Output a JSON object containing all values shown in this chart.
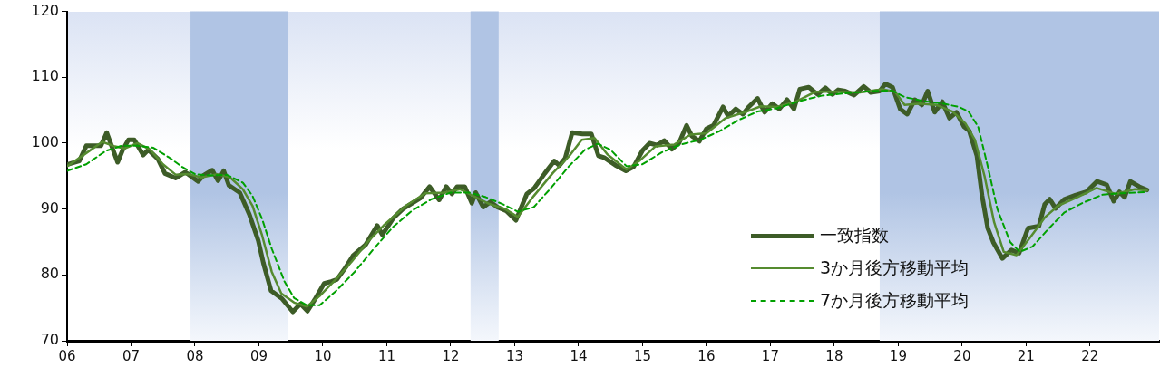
{
  "chart_data": {
    "type": "line",
    "xlim": [
      2006,
      2023.08
    ],
    "xticks": [
      {
        "value": 2006,
        "label": "06"
      },
      {
        "value": 2007,
        "label": "07"
      },
      {
        "value": 2008,
        "label": "08"
      },
      {
        "value": 2009,
        "label": "09"
      },
      {
        "value": 2010,
        "label": "10"
      },
      {
        "value": 2011,
        "label": "11"
      },
      {
        "value": 2012,
        "label": "12"
      },
      {
        "value": 2013,
        "label": "13"
      },
      {
        "value": 2014,
        "label": "14"
      },
      {
        "value": 2015,
        "label": "15"
      },
      {
        "value": 2016,
        "label": "16"
      },
      {
        "value": 2017,
        "label": "17"
      },
      {
        "value": 2018,
        "label": "18"
      },
      {
        "value": 2019,
        "label": "19"
      },
      {
        "value": 2020,
        "label": "20"
      },
      {
        "value": 2021,
        "label": "21"
      },
      {
        "value": 2022,
        "label": "22"
      }
    ],
    "ylim": [
      70,
      120
    ],
    "yticks": [
      70,
      80,
      90,
      100,
      110,
      120
    ],
    "grid": false,
    "legend": "bottom right",
    "marker": "none",
    "bands": [
      {
        "axis": "x",
        "from": 2007.93,
        "to": 2009.46,
        "color": "#b0c4e4"
      },
      {
        "axis": "x",
        "from": 2012.31,
        "to": 2012.75,
        "color": "#b0c4e4"
      },
      {
        "axis": "x",
        "from": 2018.71,
        "to": 2023.08,
        "color": "#b0c4e4"
      }
    ],
    "series": [
      {
        "name": "一致指数",
        "color": "#3d5c27",
        "line_style": "solid",
        "x": [
          2006.02,
          2006.19,
          2006.3,
          2006.39,
          2006.53,
          2006.62,
          2006.79,
          2006.87,
          2006.96,
          2007.05,
          2007.19,
          2007.27,
          2007.42,
          2007.53,
          2007.7,
          2007.85,
          2008.05,
          2008.13,
          2008.27,
          2008.36,
          2008.45,
          2008.53,
          2008.7,
          2008.85,
          2008.99,
          2009.07,
          2009.19,
          2009.36,
          2009.53,
          2009.65,
          2009.76,
          2009.87,
          2010.02,
          2010.13,
          2010.22,
          2010.36,
          2010.47,
          2010.67,
          2010.85,
          2010.93,
          2011.1,
          2011.25,
          2011.53,
          2011.67,
          2011.82,
          2011.93,
          2012.02,
          2012.1,
          2012.22,
          2012.33,
          2012.39,
          2012.51,
          2012.62,
          2012.73,
          2012.87,
          2013.02,
          2013.19,
          2013.3,
          2013.47,
          2013.62,
          2013.7,
          2013.79,
          2013.9,
          2014.06,
          2014.2,
          2014.31,
          2014.4,
          2014.57,
          2014.74,
          2014.86,
          2015.0,
          2015.11,
          2015.23,
          2015.34,
          2015.46,
          2015.57,
          2015.69,
          2015.77,
          2015.89,
          2016.0,
          2016.11,
          2016.26,
          2016.34,
          2016.46,
          2016.57,
          2016.66,
          2016.8,
          2016.91,
          2017.03,
          2017.14,
          2017.26,
          2017.37,
          2017.46,
          2017.6,
          2017.74,
          2017.86,
          2017.97,
          2018.06,
          2018.17,
          2018.31,
          2018.46,
          2018.57,
          2018.71,
          2018.8,
          2018.91,
          2019.03,
          2019.14,
          2019.26,
          2019.37,
          2019.46,
          2019.57,
          2019.69,
          2019.8,
          2019.91,
          2020.03,
          2020.11,
          2020.23,
          2020.31,
          2020.4,
          2020.49,
          2020.63,
          2020.77,
          2020.89,
          2021.03,
          2021.2,
          2021.29,
          2021.37,
          2021.46,
          2021.6,
          2021.77,
          2021.94,
          2022.11,
          2022.26,
          2022.37,
          2022.46,
          2022.54,
          2022.63,
          2022.77,
          2022.89
        ],
        "values": [
          96.8,
          97.3,
          99.6,
          99.6,
          99.6,
          101.6,
          97.1,
          99.0,
          100.5,
          100.5,
          98.2,
          99.0,
          97.6,
          95.4,
          94.7,
          95.6,
          94.2,
          95.1,
          95.9,
          94.3,
          95.8,
          93.6,
          92.5,
          89.2,
          85.2,
          81.8,
          77.6,
          76.4,
          74.4,
          75.6,
          74.5,
          76.2,
          78.7,
          79.0,
          79.3,
          81.2,
          82.9,
          84.6,
          87.5,
          86.1,
          88.6,
          90.0,
          91.7,
          93.4,
          91.4,
          93.4,
          92.3,
          93.4,
          93.4,
          90.9,
          92.5,
          90.3,
          91.1,
          90.3,
          89.7,
          88.3,
          92.3,
          93.1,
          95.4,
          97.3,
          96.6,
          97.7,
          101.6,
          101.4,
          101.4,
          98.1,
          97.8,
          96.7,
          95.8,
          96.4,
          98.9,
          100,
          99.7,
          100.4,
          99.1,
          100,
          102.7,
          101.1,
          100.3,
          102.2,
          102.7,
          105.5,
          104.1,
          105.2,
          104.4,
          105.5,
          106.8,
          104.7,
          106,
          105.2,
          106.6,
          105.2,
          108.2,
          108.5,
          107.4,
          108.4,
          107.4,
          108.1,
          107.9,
          107.3,
          108.6,
          107.7,
          107.9,
          109,
          108.5,
          105.2,
          104.4,
          106.6,
          105.8,
          107.9,
          104.7,
          106.3,
          103.8,
          104.7,
          102.5,
          101.9,
          98.1,
          92.1,
          87.1,
          84.9,
          82.5,
          83.8,
          83.3,
          87.1,
          87.4,
          90.7,
          91.5,
          90.1,
          91.5,
          92.1,
          92.6,
          94.2,
          93.7,
          91.2,
          92.6,
          91.8,
          94.2,
          93.4,
          92.9
        ]
      },
      {
        "name": "3か月後方移動平均",
        "color": "#558b2f",
        "line_style": "solid",
        "x": [
          2006.0,
          2006.3,
          2006.55,
          2006.75,
          2006.9,
          2007.1,
          2007.3,
          2007.5,
          2007.7,
          2007.9,
          2008.1,
          2008.35,
          2008.55,
          2008.75,
          2008.9,
          2009.05,
          2009.2,
          2009.35,
          2009.55,
          2009.75,
          2009.95,
          2010.2,
          2010.45,
          2010.7,
          2010.95,
          2011.3,
          2011.6,
          2011.9,
          2012.15,
          2012.35,
          2012.6,
          2012.85,
          2013.05,
          2013.3,
          2013.6,
          2013.85,
          2014.05,
          2014.25,
          2014.45,
          2014.75,
          2014.95,
          2015.2,
          2015.5,
          2015.75,
          2016.0,
          2016.3,
          2016.6,
          2016.85,
          2017.1,
          2017.4,
          2017.7,
          2018.0,
          2018.4,
          2018.75,
          2018.95,
          2019.1,
          2019.35,
          2019.6,
          2019.85,
          2020.05,
          2020.2,
          2020.35,
          2020.5,
          2020.65,
          2020.85,
          2021.05,
          2021.3,
          2021.5,
          2021.8,
          2022.1,
          2022.4,
          2022.7,
          2022.89
        ],
        "values": [
          96.5,
          98.5,
          100.2,
          99.5,
          99.2,
          100,
          99,
          96.8,
          95.2,
          95.3,
          94.8,
          95.3,
          94.8,
          93,
          90.5,
          86,
          80.5,
          77.2,
          75.8,
          75.2,
          76.8,
          79.3,
          82,
          85,
          87.5,
          90.5,
          92.4,
          92.5,
          93,
          92,
          90.8,
          90,
          88.8,
          92,
          95.5,
          98,
          100.5,
          100.8,
          98.3,
          96,
          97.3,
          99.5,
          99.8,
          101.3,
          101.5,
          103.8,
          104.7,
          105.6,
          105.5,
          106.3,
          107.8,
          107.8,
          107.7,
          108.2,
          107.8,
          105.8,
          106,
          105.8,
          104.8,
          103,
          100.5,
          95,
          88,
          83.5,
          83,
          85.5,
          88.8,
          90.5,
          91.8,
          93.2,
          92.3,
          93,
          92.8
        ]
      },
      {
        "name": "7か月後方移動平均",
        "color": "#00a000",
        "line_style": "dashed",
        "x": [
          2006.0,
          2006.3,
          2006.6,
          2006.85,
          2007.1,
          2007.35,
          2007.6,
          2007.8,
          2008.0,
          2008.25,
          2008.5,
          2008.75,
          2008.9,
          2009.05,
          2009.2,
          2009.4,
          2009.55,
          2009.75,
          2009.95,
          2010.2,
          2010.5,
          2010.8,
          2011.1,
          2011.4,
          2011.7,
          2012.0,
          2012.3,
          2012.55,
          2012.8,
          2013.05,
          2013.3,
          2013.55,
          2013.85,
          2014.1,
          2014.3,
          2014.5,
          2014.75,
          2015.0,
          2015.3,
          2015.6,
          2015.9,
          2016.2,
          2016.5,
          2016.8,
          2017.1,
          2017.5,
          2017.8,
          2018.2,
          2018.6,
          2018.9,
          2019.1,
          2019.4,
          2019.7,
          2019.95,
          2020.1,
          2020.25,
          2020.4,
          2020.55,
          2020.75,
          2020.9,
          2021.1,
          2021.35,
          2021.6,
          2021.9,
          2022.2,
          2022.5,
          2022.89
        ],
        "values": [
          95.8,
          96.8,
          98.8,
          99.6,
          99.6,
          99.3,
          97.8,
          96.4,
          95.3,
          95.1,
          95.2,
          94,
          92,
          88.5,
          84,
          79,
          76.5,
          75.4,
          75.4,
          77.5,
          80.5,
          84,
          87.3,
          89.8,
          91.5,
          92.5,
          92.5,
          91.8,
          90.8,
          89.6,
          90.3,
          93,
          96.5,
          99,
          99.9,
          99,
          96.5,
          96.8,
          98.6,
          99.8,
          100.5,
          101.8,
          103.5,
          104.8,
          105.3,
          106.5,
          107.2,
          107.6,
          107.9,
          108,
          107,
          106.4,
          106,
          105.5,
          104.8,
          102.5,
          96.5,
          90,
          85,
          83.5,
          84.3,
          87,
          89.5,
          91,
          92.2,
          92.4,
          92.6
        ]
      }
    ]
  }
}
